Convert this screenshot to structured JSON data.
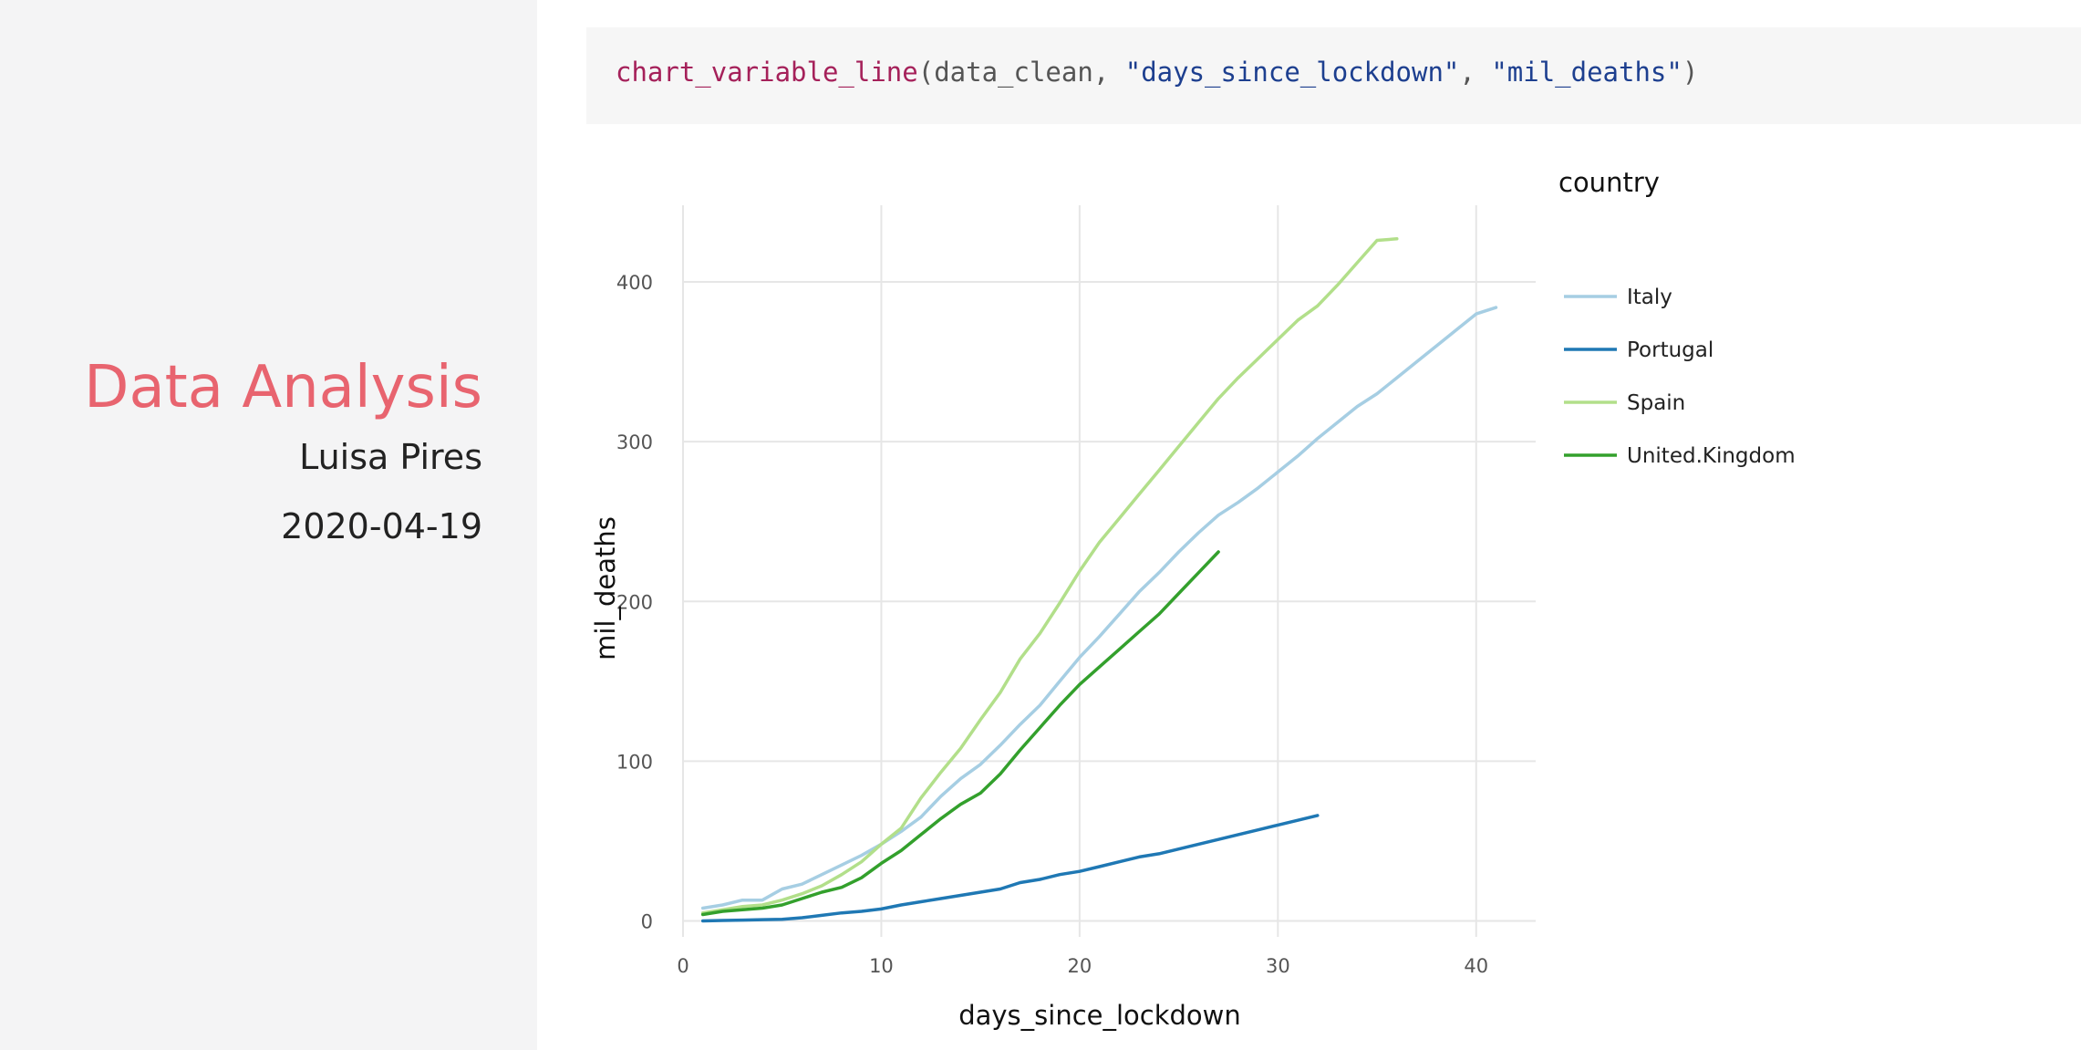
{
  "sidebar": {
    "title": "Data Analysis",
    "author": "Luisa Pires",
    "date": "2020-04-19"
  },
  "code": {
    "function": "chart_variable_line",
    "open_paren": "(",
    "arg1": "data_clean",
    "sep1": ", ",
    "arg2": "\"days_since_lockdown\"",
    "sep2": ", ",
    "arg3": "\"mil_deaths\"",
    "close_paren": ")"
  },
  "colors": {
    "title_accent": "#e8646f",
    "code_function": "#a5215a",
    "code_string": "#1d3f8f"
  },
  "chart_data": {
    "type": "line",
    "xlabel": "days_since_lockdown",
    "ylabel": "mil_deaths",
    "xlim": [
      0,
      43
    ],
    "ylim": [
      -10,
      448
    ],
    "xticks": [
      0,
      10,
      20,
      30,
      40
    ],
    "yticks": [
      0,
      100,
      200,
      300,
      400
    ],
    "grid": true,
    "legend_title": "country",
    "legend_position": "right",
    "series": [
      {
        "name": "Italy",
        "color": "#a6cee3",
        "x": [
          1,
          2,
          3,
          4,
          5,
          6,
          7,
          8,
          9,
          10,
          11,
          12,
          13,
          14,
          15,
          16,
          17,
          18,
          19,
          20,
          21,
          22,
          23,
          24,
          25,
          26,
          27,
          28,
          29,
          30,
          31,
          32,
          33,
          34,
          35,
          36,
          37,
          38,
          39,
          40,
          41
        ],
        "y": [
          8,
          10,
          13,
          13,
          20,
          23,
          29,
          35,
          41,
          48,
          56,
          65,
          78,
          89,
          98,
          110,
          123,
          135,
          150,
          165,
          178,
          192,
          206,
          218,
          231,
          243,
          254,
          262,
          271,
          281,
          291,
          302,
          312,
          322,
          330,
          340,
          350,
          360,
          370,
          380,
          384
        ]
      },
      {
        "name": "Portugal",
        "color": "#1f78b4",
        "x": [
          1,
          2,
          3,
          4,
          5,
          6,
          7,
          8,
          9,
          10,
          11,
          12,
          13,
          14,
          15,
          16,
          17,
          18,
          19,
          20,
          21,
          22,
          23,
          24,
          25,
          26,
          27,
          28,
          29,
          30,
          31,
          32
        ],
        "y": [
          0,
          0.3,
          0.5,
          0.8,
          1,
          2,
          3.5,
          5,
          6,
          7.5,
          10,
          12,
          14,
          16,
          18,
          20,
          24,
          26,
          29,
          31,
          34,
          37,
          40,
          42,
          45,
          48,
          51,
          54,
          57,
          60,
          63,
          66
        ]
      },
      {
        "name": "Spain",
        "color": "#b2df8a",
        "x": [
          1,
          2,
          3,
          4,
          5,
          6,
          7,
          8,
          9,
          10,
          11,
          12,
          13,
          14,
          15,
          16,
          17,
          18,
          19,
          20,
          21,
          22,
          23,
          24,
          25,
          26,
          27,
          28,
          29,
          30,
          31,
          32,
          33,
          34,
          35,
          36
        ],
        "y": [
          5,
          7,
          9,
          10,
          13,
          17,
          22,
          29,
          37,
          48,
          58,
          77,
          93,
          108,
          126,
          143,
          164,
          180,
          199,
          219,
          237,
          252,
          267,
          282,
          297,
          312,
          327,
          340,
          352,
          364,
          376,
          385,
          398,
          412,
          426,
          427
        ]
      },
      {
        "name": "United.Kingdom",
        "color": "#33a02c",
        "x": [
          1,
          2,
          3,
          4,
          5,
          6,
          7,
          8,
          9,
          10,
          11,
          12,
          13,
          14,
          15,
          16,
          17,
          18,
          19,
          20,
          21,
          22,
          23,
          24,
          25,
          26,
          27
        ],
        "y": [
          4,
          6,
          7,
          8,
          10,
          14,
          18,
          21,
          27,
          36,
          44,
          54,
          64,
          73,
          80,
          92,
          107,
          121,
          135,
          148,
          159,
          170,
          181,
          192,
          205,
          218,
          231
        ]
      }
    ]
  }
}
